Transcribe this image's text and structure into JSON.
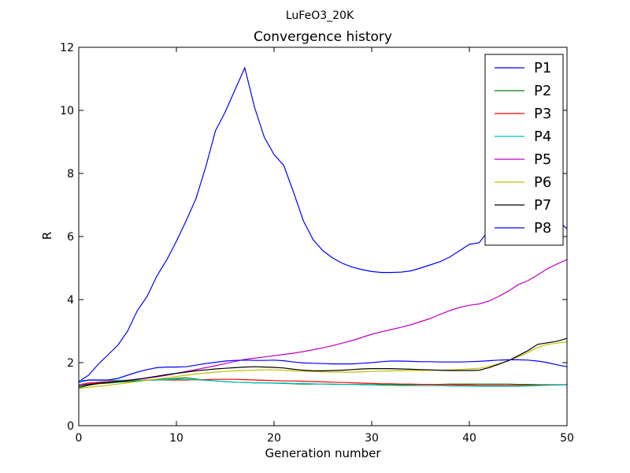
{
  "figure": {
    "suptitle": "LuFeO3_20K"
  },
  "chart_data": {
    "type": "line",
    "title": "Convergence history",
    "xlabel": "Generation number",
    "ylabel": "R",
    "xlim": [
      0,
      50
    ],
    "ylim": [
      0,
      12
    ],
    "xticks": [
      0,
      10,
      20,
      30,
      40,
      50
    ],
    "yticks": [
      0,
      2,
      4,
      6,
      8,
      10,
      12
    ],
    "grid": false,
    "legend_position": "top-right",
    "x": [
      0,
      1,
      2,
      3,
      4,
      5,
      6,
      7,
      8,
      9,
      10,
      11,
      12,
      13,
      14,
      15,
      16,
      17,
      18,
      19,
      20,
      21,
      22,
      23,
      24,
      25,
      26,
      27,
      28,
      29,
      30,
      31,
      32,
      33,
      34,
      35,
      36,
      37,
      38,
      39,
      40,
      41,
      42,
      43,
      44,
      45,
      46,
      47,
      48,
      49,
      50
    ],
    "series": [
      {
        "name": "P1",
        "color": "#0000ff",
        "values": [
          1.4,
          1.6,
          1.95,
          2.25,
          2.55,
          3.0,
          3.65,
          4.1,
          4.75,
          5.25,
          5.85,
          6.5,
          7.2,
          8.2,
          9.35,
          9.95,
          10.65,
          11.35,
          10.1,
          9.15,
          8.6,
          8.25,
          7.4,
          6.5,
          5.9,
          5.55,
          5.32,
          5.15,
          5.03,
          4.95,
          4.89,
          4.86,
          4.86,
          4.87,
          4.91,
          5.0,
          5.1,
          5.2,
          5.35,
          5.55,
          5.75,
          5.8,
          6.2,
          6.5,
          6.8,
          7.0,
          7.1,
          7.0,
          6.8,
          6.5,
          6.25
        ]
      },
      {
        "name": "P2",
        "color": "#008000",
        "values": [
          1.2,
          1.28,
          1.33,
          1.35,
          1.38,
          1.4,
          1.42,
          1.44,
          1.46,
          1.48,
          1.5,
          1.52,
          1.48,
          1.44,
          1.42,
          1.4,
          1.38,
          1.37,
          1.36,
          1.36,
          1.35,
          1.34,
          1.33,
          1.32,
          1.32,
          1.32,
          1.31,
          1.31,
          1.31,
          1.31,
          1.3,
          1.3,
          1.3,
          1.3,
          1.3,
          1.31,
          1.31,
          1.31,
          1.32,
          1.32,
          1.32,
          1.32,
          1.32,
          1.32,
          1.32,
          1.31,
          1.31,
          1.3,
          1.3,
          1.3,
          1.3
        ]
      },
      {
        "name": "P3",
        "color": "#ff0000",
        "values": [
          1.3,
          1.35,
          1.38,
          1.4,
          1.42,
          1.44,
          1.44,
          1.45,
          1.45,
          1.45,
          1.45,
          1.45,
          1.46,
          1.46,
          1.47,
          1.47,
          1.47,
          1.46,
          1.45,
          1.44,
          1.43,
          1.42,
          1.42,
          1.41,
          1.4,
          1.39,
          1.38,
          1.37,
          1.36,
          1.35,
          1.34,
          1.33,
          1.33,
          1.32,
          1.32,
          1.31,
          1.31,
          1.3,
          1.3,
          1.29,
          1.29,
          1.28,
          1.28,
          1.28,
          1.28,
          1.28,
          1.28,
          1.28,
          1.29,
          1.29,
          1.3
        ]
      },
      {
        "name": "P4",
        "color": "#00bfbf",
        "values": [
          1.43,
          1.44,
          1.44,
          1.44,
          1.44,
          1.44,
          1.44,
          1.44,
          1.45,
          1.46,
          1.47,
          1.47,
          1.46,
          1.44,
          1.42,
          1.4,
          1.38,
          1.37,
          1.36,
          1.36,
          1.35,
          1.35,
          1.34,
          1.34,
          1.33,
          1.32,
          1.32,
          1.31,
          1.31,
          1.3,
          1.29,
          1.28,
          1.28,
          1.27,
          1.27,
          1.27,
          1.27,
          1.27,
          1.26,
          1.26,
          1.25,
          1.25,
          1.25,
          1.25,
          1.25,
          1.25,
          1.26,
          1.27,
          1.28,
          1.29,
          1.3
        ]
      },
      {
        "name": "P5",
        "color": "#bf00bf",
        "values": [
          1.3,
          1.32,
          1.35,
          1.37,
          1.4,
          1.44,
          1.48,
          1.51,
          1.55,
          1.6,
          1.66,
          1.72,
          1.78,
          1.84,
          1.9,
          1.97,
          2.04,
          2.1,
          2.14,
          2.18,
          2.22,
          2.26,
          2.3,
          2.35,
          2.41,
          2.47,
          2.54,
          2.62,
          2.7,
          2.8,
          2.9,
          2.98,
          3.05,
          3.12,
          3.2,
          3.3,
          3.4,
          3.53,
          3.65,
          3.75,
          3.82,
          3.86,
          3.95,
          4.1,
          4.27,
          4.47,
          4.6,
          4.78,
          4.98,
          5.13,
          5.27
        ]
      },
      {
        "name": "P6",
        "color": "#bfbf00",
        "values": [
          1.18,
          1.22,
          1.25,
          1.28,
          1.32,
          1.36,
          1.4,
          1.44,
          1.48,
          1.52,
          1.56,
          1.6,
          1.64,
          1.67,
          1.7,
          1.72,
          1.74,
          1.75,
          1.76,
          1.77,
          1.77,
          1.76,
          1.74,
          1.73,
          1.72,
          1.71,
          1.7,
          1.7,
          1.7,
          1.71,
          1.72,
          1.73,
          1.74,
          1.74,
          1.75,
          1.75,
          1.76,
          1.76,
          1.77,
          1.78,
          1.8,
          1.82,
          1.88,
          1.96,
          2.06,
          2.18,
          2.32,
          2.48,
          2.58,
          2.62,
          2.66
        ]
      },
      {
        "name": "P7",
        "color": "#000000",
        "values": [
          1.25,
          1.3,
          1.34,
          1.37,
          1.4,
          1.43,
          1.47,
          1.52,
          1.57,
          1.62,
          1.66,
          1.7,
          1.74,
          1.77,
          1.8,
          1.82,
          1.84,
          1.86,
          1.87,
          1.86,
          1.85,
          1.83,
          1.79,
          1.76,
          1.74,
          1.74,
          1.75,
          1.76,
          1.78,
          1.8,
          1.81,
          1.81,
          1.81,
          1.8,
          1.79,
          1.78,
          1.77,
          1.76,
          1.75,
          1.75,
          1.75,
          1.76,
          1.84,
          1.95,
          2.06,
          2.22,
          2.38,
          2.58,
          2.63,
          2.68,
          2.77
        ]
      },
      {
        "name": "P8",
        "color": "#0000ff",
        "values": [
          1.38,
          1.45,
          1.45,
          1.45,
          1.5,
          1.6,
          1.7,
          1.78,
          1.84,
          1.86,
          1.86,
          1.87,
          1.92,
          1.97,
          2.01,
          2.05,
          2.07,
          2.08,
          2.07,
          2.07,
          2.08,
          2.06,
          2.02,
          1.99,
          1.98,
          1.97,
          1.96,
          1.96,
          1.96,
          1.98,
          2.0,
          2.03,
          2.05,
          2.05,
          2.04,
          2.03,
          2.03,
          2.02,
          2.02,
          2.02,
          2.03,
          2.04,
          2.06,
          2.08,
          2.09,
          2.09,
          2.08,
          2.05,
          2.0,
          1.93,
          1.87
        ]
      }
    ]
  }
}
